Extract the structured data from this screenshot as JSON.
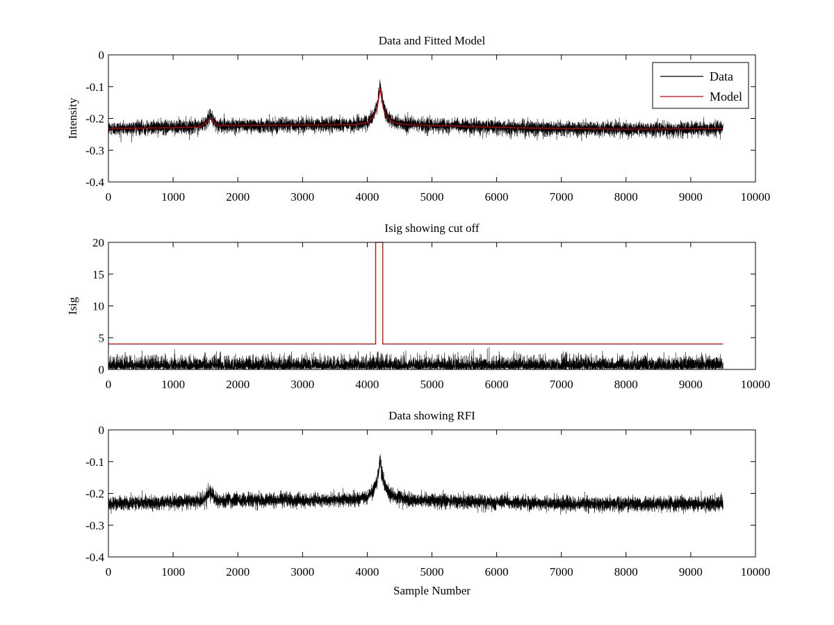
{
  "colors": {
    "data": "#000000",
    "model": "#cc0000",
    "background": "#ffffff"
  },
  "chart_data": [
    {
      "type": "line",
      "title": "Data and Fitted Model",
      "xlabel": "",
      "ylabel": "Intensity",
      "xlim": [
        0,
        10000
      ],
      "ylim": [
        -0.4,
        0
      ],
      "xticks": [
        0,
        1000,
        2000,
        3000,
        4000,
        5000,
        6000,
        7000,
        8000,
        9000,
        10000
      ],
      "yticks": [
        0,
        -0.1,
        -0.2,
        -0.3,
        -0.4
      ],
      "legend": {
        "position": "top-right",
        "entries": [
          "Data",
          "Model"
        ]
      },
      "series": [
        {
          "name": "Data",
          "kind": "noisy",
          "n": 9500,
          "noise_sd": 0.011,
          "color": "#000000",
          "x": [
            0,
            1400,
            1500,
            1560,
            1600,
            1650,
            1700,
            1800,
            3000,
            3800,
            4000,
            4100,
            4150,
            4180,
            4200,
            4220,
            4250,
            4300,
            4400,
            4600,
            5000,
            6000,
            7000,
            8000,
            9000,
            9500
          ],
          "y": [
            -0.232,
            -0.225,
            -0.215,
            -0.195,
            -0.199,
            -0.215,
            -0.222,
            -0.222,
            -0.221,
            -0.219,
            -0.212,
            -0.19,
            -0.16,
            -0.125,
            -0.09,
            -0.125,
            -0.16,
            -0.19,
            -0.21,
            -0.219,
            -0.222,
            -0.228,
            -0.232,
            -0.234,
            -0.233,
            -0.232
          ]
        },
        {
          "name": "Model",
          "kind": "smooth",
          "color": "#cc0000",
          "x": [
            0,
            1400,
            1500,
            1560,
            1600,
            1650,
            1700,
            1800,
            3000,
            3800,
            4000,
            4100,
            4150,
            4180,
            4200,
            4220,
            4250,
            4300,
            4400,
            4600,
            5000,
            6000,
            7000,
            8000,
            9000,
            9500
          ],
          "y": [
            -0.232,
            -0.228,
            -0.215,
            -0.202,
            -0.204,
            -0.216,
            -0.222,
            -0.222,
            -0.221,
            -0.22,
            -0.213,
            -0.195,
            -0.17,
            -0.135,
            -0.105,
            -0.135,
            -0.17,
            -0.195,
            -0.212,
            -0.22,
            -0.222,
            -0.228,
            -0.232,
            -0.234,
            -0.233,
            -0.232
          ]
        }
      ]
    },
    {
      "type": "line",
      "title": "Isig showing cut off",
      "xlabel": "",
      "ylabel": "Isig",
      "xlim": [
        0,
        10000
      ],
      "ylim": [
        0,
        20
      ],
      "xticks": [
        0,
        1000,
        2000,
        3000,
        4000,
        5000,
        6000,
        7000,
        8000,
        9000,
        10000
      ],
      "yticks": [
        0,
        5,
        10,
        15,
        20
      ],
      "series": [
        {
          "name": "Isig",
          "kind": "abs-noise",
          "n": 9500,
          "noise_sd": 0.9,
          "color": "#000000",
          "x": [
            0,
            9500
          ],
          "y": [
            0,
            0
          ]
        },
        {
          "name": "Cut off",
          "kind": "step",
          "color": "#cc0000",
          "x": [
            0,
            4130,
            4130,
            4240,
            4240,
            9500
          ],
          "y": [
            4,
            4,
            20,
            20,
            4,
            4
          ]
        }
      ]
    },
    {
      "type": "line",
      "title": "Data showing RFI",
      "xlabel": "Sample Number",
      "ylabel": "",
      "xlim": [
        0,
        10000
      ],
      "ylim": [
        -0.4,
        0
      ],
      "xticks": [
        0,
        1000,
        2000,
        3000,
        4000,
        5000,
        6000,
        7000,
        8000,
        9000,
        10000
      ],
      "yticks": [
        0,
        -0.1,
        -0.2,
        -0.3,
        -0.4
      ],
      "series": [
        {
          "name": "Data",
          "kind": "noisy",
          "n": 9500,
          "noise_sd": 0.011,
          "color": "#000000",
          "x": [
            0,
            1400,
            1500,
            1560,
            1600,
            1650,
            1700,
            1800,
            3000,
            3800,
            4000,
            4100,
            4150,
            4180,
            4200,
            4220,
            4250,
            4300,
            4400,
            4600,
            5000,
            6000,
            7000,
            8000,
            9000,
            9500
          ],
          "y": [
            -0.232,
            -0.225,
            -0.215,
            -0.195,
            -0.199,
            -0.215,
            -0.222,
            -0.222,
            -0.221,
            -0.219,
            -0.212,
            -0.19,
            -0.16,
            -0.125,
            -0.09,
            -0.125,
            -0.16,
            -0.19,
            -0.21,
            -0.219,
            -0.222,
            -0.228,
            -0.232,
            -0.234,
            -0.233,
            -0.232
          ]
        }
      ]
    }
  ]
}
